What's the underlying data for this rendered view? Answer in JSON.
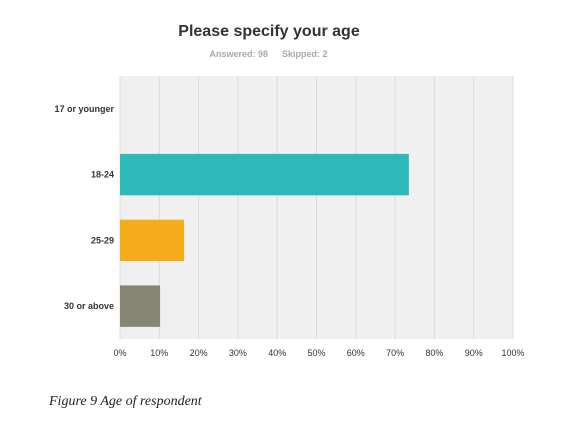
{
  "chart_data": {
    "type": "bar",
    "orientation": "horizontal",
    "title": "Please specify your age",
    "subtitle": {
      "answered": "Answered: 98",
      "skipped": "Skipped: 2"
    },
    "categories": [
      "17 or younger",
      "18-24",
      "25-29",
      "30 or above"
    ],
    "values": [
      0,
      73.5,
      16.3,
      10.2
    ],
    "colors": [
      "#2db9b9",
      "#2db9b9",
      "#f5ac1b",
      "#858572"
    ],
    "xlim": [
      0,
      100
    ],
    "xticks": [
      "0%",
      "10%",
      "20%",
      "30%",
      "40%",
      "50%",
      "60%",
      "70%",
      "80%",
      "90%",
      "100%"
    ],
    "grid": true,
    "plot_background": "#f0f0f0"
  },
  "caption": "Figure 9 Age of respondent"
}
